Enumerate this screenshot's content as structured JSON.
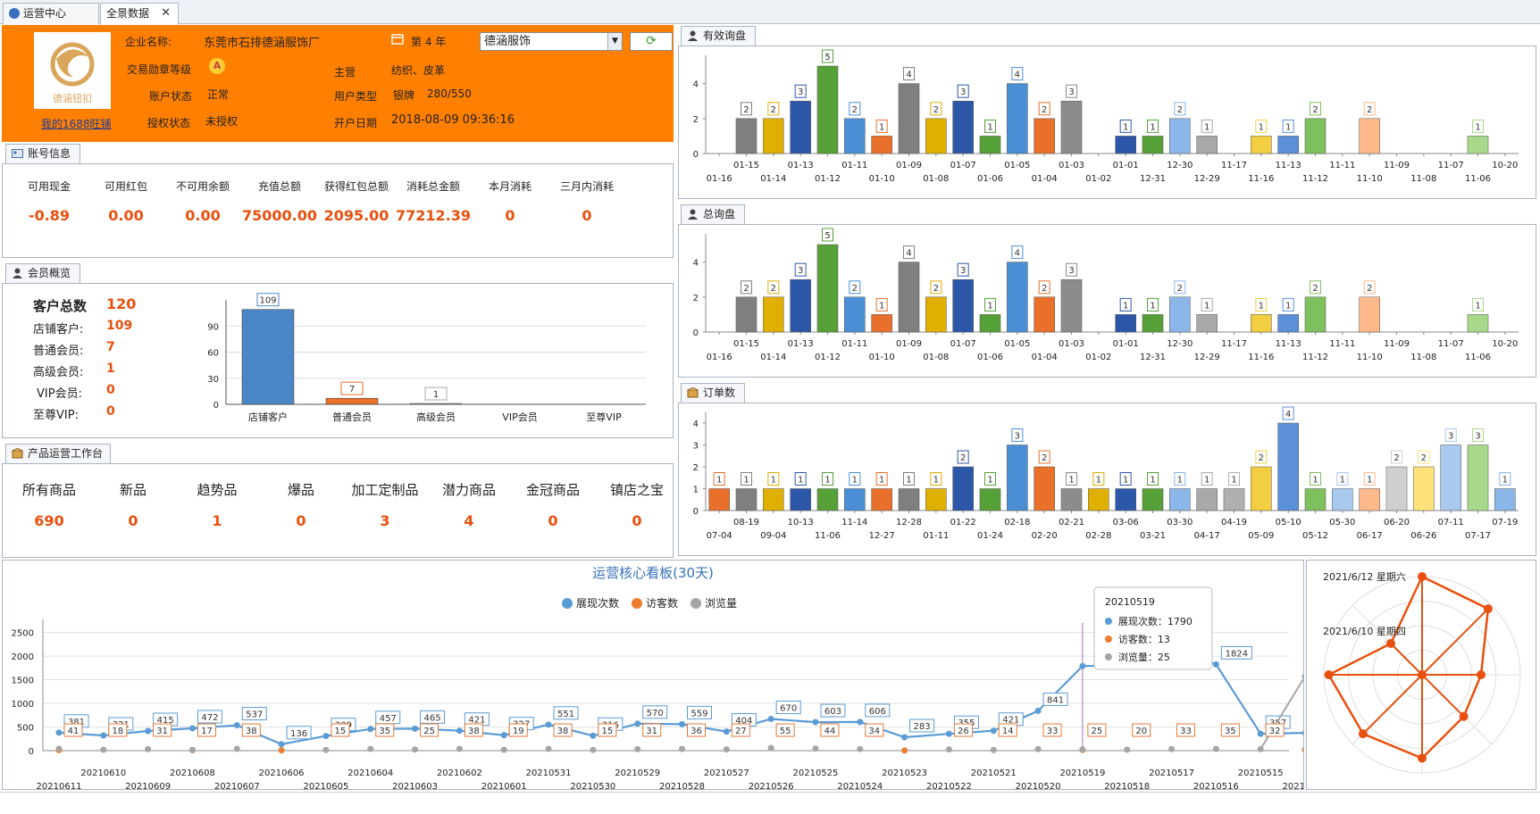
{
  "tabs": [
    {
      "label": "运营中心",
      "icon": "globe-icon"
    },
    {
      "label": "全景数据",
      "close": "✕"
    }
  ],
  "company": {
    "logo_text": "德涵钮扣",
    "name_label": "企业名称:",
    "name": "东莞市石排德涵服饰厂",
    "year": "第 4 年",
    "year_icon": "calendar-icon",
    "medal_label": "交易勋章等级",
    "medal": "A",
    "main_label": "主营",
    "main": "纺织、皮革",
    "status_label": "账户状态",
    "status": "正常",
    "user_type_label": "用户类型",
    "user_type": "银牌",
    "user_score": "280/550",
    "auth_label": "授权状态",
    "auth": "未授权",
    "open_label": "开户日期",
    "open_date": "2018-08-09 09:36:16",
    "wangpu_link": "我的1688旺铺",
    "shop_select": "德涵服饰"
  },
  "account": {
    "title": "账号信息",
    "items": [
      {
        "label": "可用现金",
        "value": "-0.89"
      },
      {
        "label": "可用红包",
        "value": "0.00"
      },
      {
        "label": "不可用余额",
        "value": "0.00"
      },
      {
        "label": "充值总额",
        "value": "75000.00"
      },
      {
        "label": "获得红包总额",
        "value": "2095.00"
      },
      {
        "label": "消耗总金额",
        "value": "77212.39"
      },
      {
        "label": "本月消耗",
        "value": "0"
      },
      {
        "label": "三月内消耗",
        "value": "0"
      }
    ]
  },
  "members": {
    "title": "会员概览",
    "total_label": "客户总数",
    "total": "120",
    "items": [
      {
        "label": "店铺客户:",
        "value": "109"
      },
      {
        "label": "普通会员:",
        "value": "7"
      },
      {
        "label": "高级会员:",
        "value": "1"
      },
      {
        "label": "VIP会员:",
        "value": "0"
      },
      {
        "label": "至尊VIP:",
        "value": "0"
      }
    ]
  },
  "products": {
    "title": "产品运营工作台",
    "items": [
      {
        "label": "所有商品",
        "value": "690"
      },
      {
        "label": "新品",
        "value": "0"
      },
      {
        "label": "趋势品",
        "value": "1"
      },
      {
        "label": "爆品",
        "value": "0"
      },
      {
        "label": "加工定制品",
        "value": "3"
      },
      {
        "label": "潜力商品",
        "value": "4"
      },
      {
        "label": "金冠商品",
        "value": "0"
      },
      {
        "label": "镇店之宝",
        "value": "0"
      }
    ]
  },
  "panels": {
    "valid_inquiry": "有效询盘",
    "total_inquiry": "总询盘",
    "orders": "订单数"
  },
  "dashboard": {
    "title": "运营核心看板(30天)",
    "legend": [
      "展现次数",
      "访客数",
      "浏览量"
    ],
    "tooltip": {
      "date": "20210519",
      "rows": [
        {
          "label": "展现次数：1790"
        },
        {
          "label": "访客数：13"
        },
        {
          "label": "浏览量：25"
        }
      ]
    }
  },
  "radar": {
    "labels": [
      "2021/6/12 星期六",
      "2021/6/10 星期四"
    ]
  },
  "chart_data": [
    {
      "type": "bar",
      "title": "有效询盘",
      "categories": [
        "01-16",
        "01-15",
        "01-14",
        "01-13",
        "01-12",
        "01-11",
        "01-10",
        "01-09",
        "01-08",
        "01-07",
        "01-06",
        "01-05",
        "01-04",
        "01-03",
        "01-02",
        "01-01",
        "12-31",
        "12-30",
        "12-29",
        "11-17",
        "11-16",
        "11-13",
        "11-12",
        "11-11",
        "11-10",
        "11-09",
        "11-08",
        "11-07",
        "11-06",
        "10-20"
      ],
      "values": [
        0,
        2,
        2,
        3,
        5,
        2,
        1,
        4,
        2,
        3,
        1,
        4,
        2,
        3,
        0,
        1,
        1,
        2,
        1,
        0,
        1,
        1,
        2,
        0,
        2,
        0,
        0,
        0,
        1,
        0
      ],
      "ylim": [
        0,
        5
      ],
      "yticks": [
        0,
        2,
        4
      ],
      "colors": [
        "#e8702a",
        "#e8702a",
        "#7f7f7f",
        "#e0b000",
        "#2c57a8",
        "#56a038",
        "#4a8fd6",
        "#e8702a",
        "#7f7f7f",
        "#e0b000",
        "#2c57a8",
        "#56a038",
        "#4a8fd6",
        "#e8702a",
        "#7f7f7f",
        "#e0b000",
        "#2c57a8",
        "#56a038",
        "#8ab6e8",
        "#b0b0b0",
        "#a9a9a9",
        "#f2cf40",
        "#5b8fd8",
        "#7fc05e",
        "#a9c9ee",
        "#ffb88a",
        "#cfcfcf",
        "#ffe17a",
        "#a9c9ee",
        "#a8d88a"
      ]
    },
    {
      "type": "bar",
      "title": "总询盘",
      "categories": [
        "01-16",
        "01-15",
        "01-14",
        "01-13",
        "01-12",
        "01-11",
        "01-10",
        "01-09",
        "01-08",
        "01-07",
        "01-06",
        "01-05",
        "01-04",
        "01-03",
        "01-02",
        "01-01",
        "12-31",
        "12-30",
        "12-29",
        "11-17",
        "11-16",
        "11-13",
        "11-12",
        "11-11",
        "11-10",
        "11-09",
        "11-08",
        "11-07",
        "11-06",
        "10-20"
      ],
      "values": [
        0,
        2,
        2,
        3,
        5,
        2,
        1,
        4,
        2,
        3,
        1,
        4,
        2,
        3,
        0,
        1,
        1,
        2,
        1,
        0,
        1,
        1,
        2,
        0,
        2,
        0,
        0,
        0,
        1,
        0
      ],
      "ylim": [
        0,
        5
      ],
      "yticks": [
        0,
        2,
        4
      ]
    },
    {
      "type": "bar",
      "title": "订单数",
      "categories": [
        "07-04",
        "08-19",
        "09-04",
        "10-13",
        "11-06",
        "11-14",
        "12-27",
        "12-28",
        "01-11",
        "01-22",
        "01-24",
        "02-18",
        "02-20",
        "02-21",
        "02-28",
        "03-06",
        "03-21",
        "03-30",
        "04-17",
        "04-19",
        "05-09",
        "05-10",
        "05-12",
        "05-30",
        "06-17",
        "06-20",
        "06-26",
        "07-11",
        "07-17",
        "07-19"
      ],
      "values": [
        1,
        1,
        1,
        1,
        1,
        1,
        1,
        1,
        1,
        2,
        1,
        3,
        2,
        1,
        1,
        1,
        1,
        1,
        1,
        1,
        2,
        4,
        1,
        1,
        1,
        2,
        2,
        3,
        3,
        1
      ],
      "ylim": [
        0,
        4
      ],
      "yticks": [
        0,
        1,
        2,
        3,
        4
      ]
    },
    {
      "type": "bar",
      "title": "会员概览",
      "categories": [
        "店铺客户",
        "普通会员",
        "高级会员",
        "VIP会员",
        "至尊VIP"
      ],
      "values": [
        109,
        7,
        1,
        0,
        0
      ],
      "ylim": [
        0,
        120
      ],
      "yticks": [
        0,
        30,
        60,
        90
      ]
    },
    {
      "type": "line",
      "title": "运营核心看板(30天)",
      "x": [
        "20210611",
        "20210610",
        "20210609",
        "20210608",
        "20210607",
        "20210606",
        "20210605",
        "20210604",
        "20210603",
        "20210602",
        "20210601",
        "20210531",
        "20210530",
        "20210529",
        "20210528",
        "20210527",
        "20210526",
        "20210525",
        "20210524",
        "20210523",
        "20210522",
        "20210521",
        "20210520",
        "20210519",
        "20210518",
        "20210517",
        "20210516",
        "20210515",
        "20210514"
      ],
      "series": [
        {
          "name": "展现次数",
          "color": "#5a9bd5",
          "values": [
            381,
            321,
            415,
            472,
            537,
            136,
            309,
            457,
            465,
            421,
            327,
            551,
            316,
            570,
            559,
            404,
            670,
            603,
            606,
            283,
            355,
            421,
            841,
            1790,
            1800,
            2159,
            1824,
            357,
            375
          ]
        },
        {
          "name": "访客数",
          "color": "#ed7d31",
          "values": [
            11,
            null,
            null,
            10,
            null,
            6,
            null,
            null,
            null,
            null,
            null,
            null,
            null,
            null,
            null,
            null,
            null,
            null,
            null,
            2,
            null,
            null,
            null,
            13,
            null,
            null,
            null,
            null,
            18
          ]
        },
        {
          "name": "浏览量",
          "color": "#a5a5a5",
          "values": [
            41,
            18,
            31,
            17,
            38,
            null,
            15,
            35,
            25,
            38,
            19,
            38,
            15,
            31,
            36,
            27,
            55,
            44,
            34,
            null,
            26,
            14,
            33,
            25,
            20,
            33,
            35,
            32,
            1572
          ]
        }
      ],
      "ylim": [
        0,
        2700
      ],
      "yticks": [
        0,
        500,
        1000,
        1500,
        2000,
        2500
      ]
    },
    {
      "type": "radar",
      "title": "radar",
      "values": [
        1,
        0.95,
        0.6,
        0.6,
        0.85,
        0.85,
        0.95,
        0.45
      ]
    }
  ]
}
